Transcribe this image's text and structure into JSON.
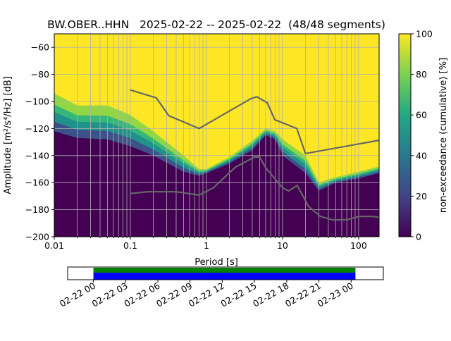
{
  "chart_data": {
    "type": "heatmap",
    "title": "BW.OBER..HHN   2025-02-22 -- 2025-02-22  (48/48 segments)",
    "xlabel": "Period [s]",
    "ylabel": "Amplitude [m²/s⁴/Hz] [dB]",
    "xscale": "log",
    "xlim": [
      0.01,
      186
    ],
    "ylim": [
      -200,
      -50
    ],
    "xticks": [
      {
        "v": 0.01,
        "label": "0.01"
      },
      {
        "v": 0.1,
        "label": "0.1"
      },
      {
        "v": 1,
        "label": "1"
      },
      {
        "v": 10,
        "label": "10"
      },
      {
        "v": 100,
        "label": "100"
      }
    ],
    "yticks": [
      {
        "v": -60,
        "label": "−60"
      },
      {
        "v": -80,
        "label": "−80"
      },
      {
        "v": -100,
        "label": "−100"
      },
      {
        "v": -120,
        "label": "−120"
      },
      {
        "v": -140,
        "label": "−140"
      },
      {
        "v": -160,
        "label": "−160"
      },
      {
        "v": -180,
        "label": "−180"
      },
      {
        "v": -200,
        "label": "−200"
      }
    ],
    "grid": true,
    "density_boundaries": {
      "periods": [
        0.01,
        0.02,
        0.05,
        0.1,
        0.2,
        0.5,
        0.8,
        1,
        2,
        4,
        6,
        8,
        10,
        20,
        30,
        50,
        100,
        186
      ],
      "lower_0pct": [
        -122,
        -127,
        -128,
        -133,
        -140,
        -152,
        -155,
        -153,
        -146,
        -136,
        -125,
        -128,
        -140,
        -153,
        -166,
        -160,
        -157,
        -153
      ],
      "upper_100pct": [
        -94,
        -103,
        -103,
        -110,
        -122,
        -140,
        -150,
        -150,
        -141,
        -129,
        -120,
        -122,
        -128,
        -140,
        -160,
        -156,
        -152,
        -148
      ]
    },
    "noise_models": [
      {
        "name": "NHNM",
        "periods": [
          0.1,
          0.22,
          0.32,
          0.8,
          3.8,
          4.6,
          6.3,
          7.9,
          15.4,
          20,
          186
        ],
        "values": [
          -91.5,
          -97.4,
          -110.5,
          -120,
          -98,
          -96.5,
          -101,
          -113.5,
          -120,
          -138.5,
          -128.7
        ]
      },
      {
        "name": "NLNM",
        "periods": [
          0.1,
          0.17,
          0.4,
          0.8,
          1.24,
          2.4,
          4.3,
          5,
          6,
          10,
          12,
          15.6,
          21.9,
          31.6,
          45,
          70,
          101,
          154,
          186
        ],
        "values": [
          -168,
          -166.7,
          -166.7,
          -169.2,
          -163.7,
          -148.6,
          -141.1,
          -141.1,
          -149,
          -163.8,
          -166.2,
          -162.1,
          -177.5,
          -185,
          -187.5,
          -187.5,
          -185,
          -185,
          -185.7
        ]
      }
    ],
    "colorbar": {
      "label": "non-exceedance (cumulative) [%]",
      "range": [
        0,
        100
      ],
      "ticks": [
        {
          "v": 0,
          "label": "0"
        },
        {
          "v": 20,
          "label": "20"
        },
        {
          "v": 40,
          "label": "40"
        },
        {
          "v": 60,
          "label": "60"
        },
        {
          "v": 80,
          "label": "80"
        },
        {
          "v": 100,
          "label": "100"
        }
      ]
    },
    "coverage": {
      "ticks": [
        "02-22 00",
        "02-22 03",
        "02-22 06",
        "02-22 09",
        "02-22 12",
        "02-22 15",
        "02-22 18",
        "02-22 21",
        "02-23 00"
      ],
      "range_hours": [
        -2.4,
        27.0
      ],
      "data_span_hours": [
        0,
        24.4
      ],
      "colors": {
        "data": "#0000ff",
        "processed": "#008000"
      }
    }
  }
}
